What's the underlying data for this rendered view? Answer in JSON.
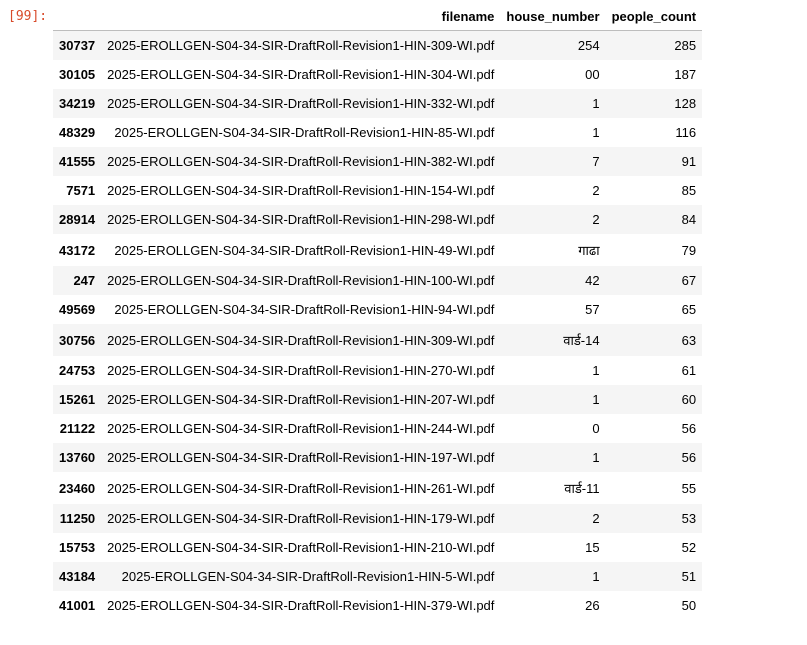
{
  "cell": {
    "prompt": "[99]:"
  },
  "table": {
    "columns": [
      "filename",
      "house_number",
      "people_count"
    ],
    "rows": [
      {
        "index": "30737",
        "filename": "2025-EROLLGEN-S04-34-SIR-DraftRoll-Revision1-HIN-309-WI.pdf",
        "house_number": "254",
        "people_count": "285"
      },
      {
        "index": "30105",
        "filename": "2025-EROLLGEN-S04-34-SIR-DraftRoll-Revision1-HIN-304-WI.pdf",
        "house_number": "00",
        "people_count": "187"
      },
      {
        "index": "34219",
        "filename": "2025-EROLLGEN-S04-34-SIR-DraftRoll-Revision1-HIN-332-WI.pdf",
        "house_number": "1",
        "people_count": "128"
      },
      {
        "index": "48329",
        "filename": "2025-EROLLGEN-S04-34-SIR-DraftRoll-Revision1-HIN-85-WI.pdf",
        "house_number": "1",
        "people_count": "116"
      },
      {
        "index": "41555",
        "filename": "2025-EROLLGEN-S04-34-SIR-DraftRoll-Revision1-HIN-382-WI.pdf",
        "house_number": "7",
        "people_count": "91"
      },
      {
        "index": "7571",
        "filename": "2025-EROLLGEN-S04-34-SIR-DraftRoll-Revision1-HIN-154-WI.pdf",
        "house_number": "2",
        "people_count": "85"
      },
      {
        "index": "28914",
        "filename": "2025-EROLLGEN-S04-34-SIR-DraftRoll-Revision1-HIN-298-WI.pdf",
        "house_number": "2",
        "people_count": "84"
      },
      {
        "index": "43172",
        "filename": "2025-EROLLGEN-S04-34-SIR-DraftRoll-Revision1-HIN-49-WI.pdf",
        "house_number": "गाढा",
        "people_count": "79"
      },
      {
        "index": "247",
        "filename": "2025-EROLLGEN-S04-34-SIR-DraftRoll-Revision1-HIN-100-WI.pdf",
        "house_number": "42",
        "people_count": "67"
      },
      {
        "index": "49569",
        "filename": "2025-EROLLGEN-S04-34-SIR-DraftRoll-Revision1-HIN-94-WI.pdf",
        "house_number": "57",
        "people_count": "65"
      },
      {
        "index": "30756",
        "filename": "2025-EROLLGEN-S04-34-SIR-DraftRoll-Revision1-HIN-309-WI.pdf",
        "house_number": "वार्ड-14",
        "people_count": "63"
      },
      {
        "index": "24753",
        "filename": "2025-EROLLGEN-S04-34-SIR-DraftRoll-Revision1-HIN-270-WI.pdf",
        "house_number": "1",
        "people_count": "61"
      },
      {
        "index": "15261",
        "filename": "2025-EROLLGEN-S04-34-SIR-DraftRoll-Revision1-HIN-207-WI.pdf",
        "house_number": "1",
        "people_count": "60"
      },
      {
        "index": "21122",
        "filename": "2025-EROLLGEN-S04-34-SIR-DraftRoll-Revision1-HIN-244-WI.pdf",
        "house_number": "0",
        "people_count": "56"
      },
      {
        "index": "13760",
        "filename": "2025-EROLLGEN-S04-34-SIR-DraftRoll-Revision1-HIN-197-WI.pdf",
        "house_number": "1",
        "people_count": "56"
      },
      {
        "index": "23460",
        "filename": "2025-EROLLGEN-S04-34-SIR-DraftRoll-Revision1-HIN-261-WI.pdf",
        "house_number": "वार्ड-11",
        "people_count": "55"
      },
      {
        "index": "11250",
        "filename": "2025-EROLLGEN-S04-34-SIR-DraftRoll-Revision1-HIN-179-WI.pdf",
        "house_number": "2",
        "people_count": "53"
      },
      {
        "index": "15753",
        "filename": "2025-EROLLGEN-S04-34-SIR-DraftRoll-Revision1-HIN-210-WI.pdf",
        "house_number": "15",
        "people_count": "52"
      },
      {
        "index": "43184",
        "filename": "2025-EROLLGEN-S04-34-SIR-DraftRoll-Revision1-HIN-5-WI.pdf",
        "house_number": "1",
        "people_count": "51"
      },
      {
        "index": "41001",
        "filename": "2025-EROLLGEN-S04-34-SIR-DraftRoll-Revision1-HIN-379-WI.pdf",
        "house_number": "26",
        "people_count": "50"
      }
    ]
  }
}
